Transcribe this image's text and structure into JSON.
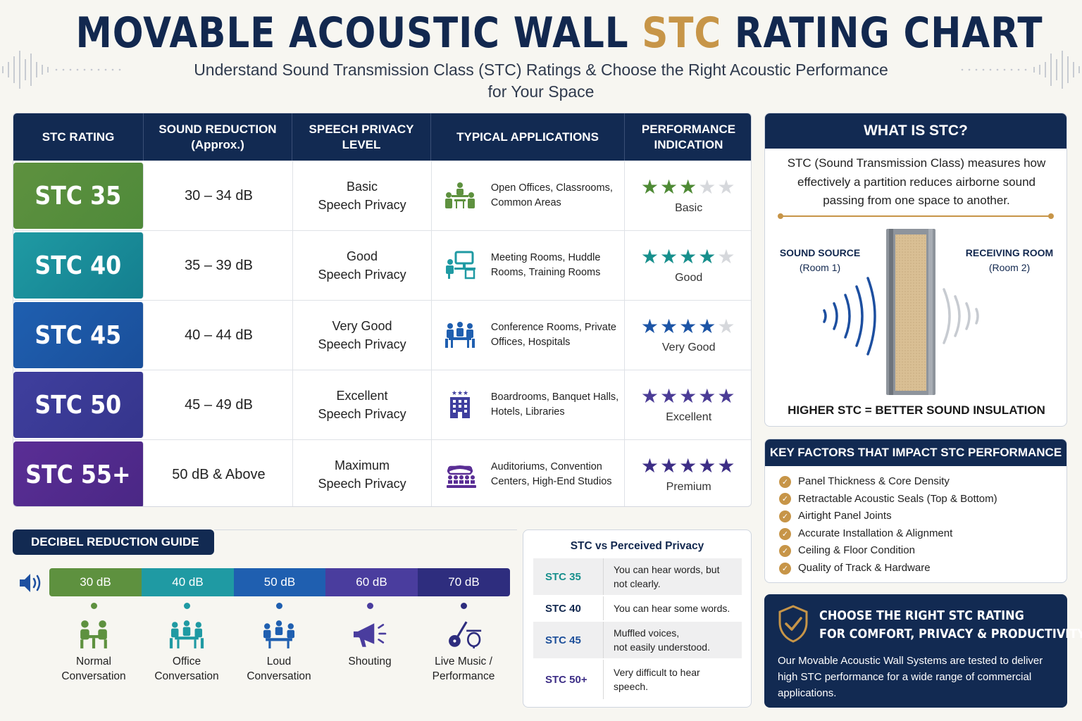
{
  "header": {
    "title_main": "MOVABLE ACOUSTIC WALL ",
    "title_accent": "STC",
    "title_end": " RATING CHART",
    "subtitle_line1": "Understand Sound Transmission Class (STC) Ratings & Choose the Right Acoustic Performance",
    "subtitle_line2": "for Your Space"
  },
  "table": {
    "headers": [
      "STC RATING",
      "SOUND REDUCTION\n(Approx.)",
      "SPEECH PRIVACY\nLEVEL",
      "TYPICAL APPLICATIONS",
      "PERFORMANCE\nINDICATION"
    ],
    "rows": [
      {
        "rating": "STC 35",
        "reduction": "30 – 34 dB",
        "privacy1": "Basic",
        "privacy2": "Speech Privacy",
        "apps1": "Open Offices, Classrooms,",
        "apps2": "Common Areas",
        "stars": 3,
        "perf": "Basic",
        "color": "#5e913f",
        "color2": "#4f8a3a",
        "star_color": "#4e8a35",
        "icon": "classroom-icon"
      },
      {
        "rating": "STC 40",
        "reduction": "35 – 39 dB",
        "privacy1": "Good",
        "privacy2": "Speech Privacy",
        "apps1": "Meeting Rooms, Huddle",
        "apps2": "Rooms, Training Rooms",
        "stars": 4,
        "perf": "Good",
        "color": "#1f9aa3",
        "color2": "#147f8f",
        "star_color": "#178f8c",
        "icon": "meeting-desk-icon"
      },
      {
        "rating": "STC 45",
        "reduction": "40 – 44 dB",
        "privacy1": "Very Good",
        "privacy2": "Speech Privacy",
        "apps1": "Conference Rooms, Private",
        "apps2": "Offices, Hospitals",
        "stars": 4,
        "perf": "Very Good",
        "color": "#1f5fb0",
        "color2": "#1a4f9a",
        "star_color": "#1d55a6",
        "icon": "conference-icon"
      },
      {
        "rating": "STC 50",
        "reduction": "45 – 49 dB",
        "privacy1": "Excellent",
        "privacy2": "Speech Privacy",
        "apps1": "Boardrooms, Banquet Halls,",
        "apps2": "Hotels, Libraries",
        "stars": 5,
        "perf": "Excellent",
        "color": "#3f3f9e",
        "color2": "#35358c",
        "star_color": "#4b3c96",
        "icon": "hotel-icon"
      },
      {
        "rating": "STC 55+",
        "reduction": "50 dB & Above",
        "privacy1": "Maximum",
        "privacy2": "Speech Privacy",
        "apps1": "Auditoriums, Convention",
        "apps2": "Centers, High-End Studios",
        "stars": 5,
        "perf": "Premium",
        "color": "#5a2e95",
        "color2": "#4a2785",
        "star_color": "#3d2e86",
        "icon": "auditorium-icon"
      }
    ]
  },
  "what": {
    "title": "WHAT IS STC?",
    "description": "STC (Sound Transmission Class) measures how effectively a partition reduces airborne sound passing from one space to another.",
    "source_label": "SOUND SOURCE",
    "source_room": "(Room 1)",
    "receive_label": "RECEIVING ROOM",
    "receive_room": "(Room 2)",
    "footer": "HIGHER STC = BETTER SOUND INSULATION"
  },
  "factors": {
    "title": "KEY FACTORS THAT IMPACT STC PERFORMANCE",
    "items": [
      "Panel Thickness & Core Density",
      "Retractable Acoustic Seals (Top & Bottom)",
      "Airtight Panel Joints",
      "Accurate Installation & Alignment",
      "Ceiling & Floor Condition",
      "Quality of Track & Hardware"
    ]
  },
  "cta": {
    "head1": "CHOOSE THE RIGHT STC RATING",
    "head2": "FOR COMFORT, PRIVACY & PRODUCTIVITY.",
    "body": "Our Movable Acoustic Wall Systems are tested to deliver high STC performance for a wide range of commercial applications."
  },
  "guide": {
    "title": "DECIBEL REDUCTION GUIDE",
    "levels": [
      {
        "db": "30 dB",
        "label1": "Normal",
        "label2": "Conversation",
        "color": "#5e913f",
        "icon": "two-people-icon"
      },
      {
        "db": "40 dB",
        "label1": "Office",
        "label2": "Conversation",
        "color": "#1f9aa3",
        "icon": "office-meeting-icon"
      },
      {
        "db": "50 dB",
        "label1": "Loud",
        "label2": "Conversation",
        "color": "#1f5fb0",
        "icon": "group-talk-icon"
      },
      {
        "db": "60 dB",
        "label1": "Shouting",
        "label2": "",
        "color": "#4a3d9e",
        "icon": "megaphone-icon"
      },
      {
        "db": "70 dB",
        "label1": "Live Music /",
        "label2": "Performance",
        "color": "#2e2d7e",
        "icon": "guitar-drum-icon"
      }
    ]
  },
  "vs": {
    "title": "STC vs Perceived Privacy",
    "rows": [
      {
        "stc": "STC 35",
        "text1": "You can hear words, but",
        "text2": "not clearly.",
        "color": "#178f8c"
      },
      {
        "stc": "STC 40",
        "text1": "You can hear some words.",
        "text2": "",
        "color": "#12284f"
      },
      {
        "stc": "STC 45",
        "text1": "Muffled voices,",
        "text2": "not easily understood.",
        "color": "#1d4f9a"
      },
      {
        "stc": "STC 50+",
        "text1": "Very difficult to hear",
        "text2": "speech.",
        "color": "#3d2e86"
      }
    ]
  }
}
